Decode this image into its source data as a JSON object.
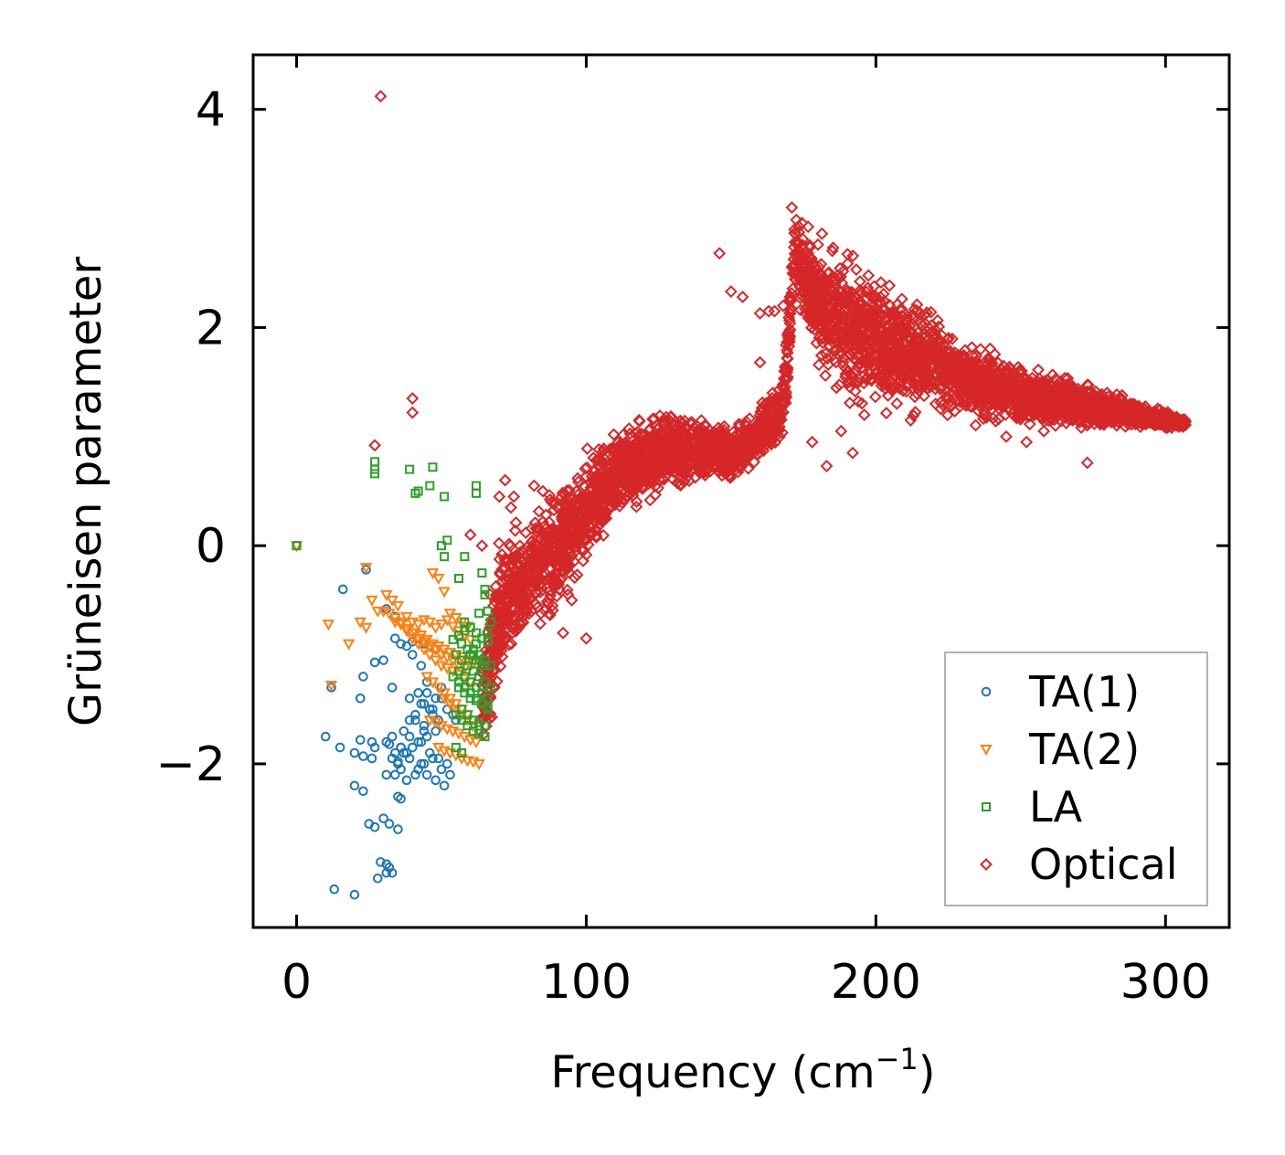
{
  "chart_data": {
    "type": "scatter",
    "title": "",
    "xlabel": "Frequency (cm",
    "xlabel_sup": "−1",
    "xlabel_close": ")",
    "ylabel": "Grüneisen parameter",
    "xlim": [
      -15,
      322
    ],
    "ylim": [
      -3.5,
      4.5
    ],
    "xticks": [
      0,
      100,
      200,
      300
    ],
    "xtick_labels": [
      "0",
      "100",
      "200",
      "300"
    ],
    "yticks": [
      -2,
      0,
      2,
      4
    ],
    "ytick_labels": [
      "−2",
      "0",
      "2",
      "4"
    ],
    "legend_position": "lower-right",
    "series": [
      {
        "name": "TA(1)",
        "marker": "circle",
        "color": "#1f77b4",
        "x": [
          0,
          24,
          16,
          31,
          34,
          34,
          27,
          30,
          33,
          12,
          23,
          22,
          36,
          38,
          40,
          43,
          45,
          42,
          44,
          46,
          48,
          50,
          41,
          39,
          44,
          47,
          49,
          37,
          39,
          42,
          45,
          48,
          36,
          38,
          40,
          43,
          46,
          49,
          33,
          35,
          37,
          39,
          42,
          44,
          47,
          50,
          52,
          31,
          34,
          36,
          38,
          41,
          43,
          45,
          48,
          51,
          53,
          41,
          44,
          46,
          39,
          43,
          47,
          35,
          36,
          30,
          32,
          35,
          29,
          31,
          33,
          36,
          38,
          20,
          23,
          25,
          27,
          10,
          15,
          22,
          26,
          20,
          23,
          26,
          27,
          35,
          33,
          31,
          32,
          34,
          28,
          31,
          32,
          13,
          20,
          45,
          50,
          52,
          54,
          55,
          40,
          44,
          48
        ],
        "y": [
          0,
          -0.22,
          -0.4,
          -0.58,
          -0.65,
          -0.85,
          -1.07,
          -1.05,
          -1.3,
          -1.3,
          -1.2,
          -1.4,
          -0.9,
          -0.92,
          -1.0,
          -1.1,
          -1.25,
          -1.35,
          -1.45,
          -1.5,
          -1.4,
          -1.3,
          -1.55,
          -1.6,
          -1.65,
          -1.55,
          -1.6,
          -1.7,
          -1.75,
          -1.8,
          -1.75,
          -1.7,
          -1.85,
          -1.9,
          -1.85,
          -1.8,
          -1.9,
          -1.95,
          -1.95,
          -2.0,
          -1.9,
          -1.95,
          -2.05,
          -2.0,
          -1.95,
          -2.05,
          -2.0,
          -2.1,
          -2.1,
          -2.05,
          -2.15,
          -2.1,
          -2.0,
          -2.1,
          -2.15,
          -2.2,
          -2.1,
          -1.6,
          -1.7,
          -1.5,
          -1.4,
          -1.45,
          -1.5,
          -2.3,
          -2.32,
          -2.5,
          -2.55,
          -2.6,
          -2.9,
          -2.92,
          -3.0,
          -1.85,
          -1.9,
          -2.2,
          -2.25,
          -2.55,
          -2.58,
          -1.75,
          -1.85,
          -1.78,
          -1.8,
          -1.9,
          -1.93,
          -1.95,
          -1.85,
          -1.98,
          -1.75,
          -1.8,
          -1.82,
          -1.9,
          -3.05,
          -3.0,
          -2.95,
          -3.15,
          -3.2,
          -1.35,
          -1.4,
          -1.5,
          -1.55,
          -1.6,
          -0.88,
          -0.9,
          -0.95
        ],
        "mark_count": 0
      },
      {
        "name": "TA(2)",
        "marker": "triangle-down",
        "color": "#ff7f0e",
        "x": [
          0,
          24,
          11,
          12,
          18,
          22,
          24,
          26,
          28,
          31,
          33,
          35,
          38,
          40,
          42,
          44,
          46,
          48,
          50,
          52,
          54,
          56,
          58,
          60,
          47,
          49,
          51,
          53,
          55,
          57,
          59,
          41,
          43,
          45,
          47,
          49,
          51,
          53,
          55,
          57,
          59,
          61,
          34,
          36,
          38,
          40,
          42,
          44,
          46,
          48,
          50,
          52,
          54,
          56,
          58,
          30,
          32,
          34,
          36,
          38,
          40,
          42,
          44,
          46,
          48,
          50,
          52,
          54,
          56,
          58,
          60,
          45,
          47,
          49,
          51,
          53,
          55,
          57,
          59,
          46,
          48,
          50,
          52,
          54,
          56,
          58,
          60,
          62,
          49,
          51,
          53,
          55,
          57,
          59,
          61,
          63,
          51,
          53,
          55,
          57,
          59,
          61
        ],
        "y": [
          0,
          -0.2,
          -0.72,
          -1.28,
          -0.9,
          -0.7,
          -0.75,
          -0.5,
          -0.6,
          -0.45,
          -0.5,
          -0.55,
          -0.65,
          -0.7,
          -0.72,
          -0.68,
          -0.7,
          -0.75,
          -0.72,
          -0.68,
          -0.74,
          -0.78,
          -0.82,
          -0.86,
          -0.25,
          -0.3,
          -0.42,
          -0.62,
          -0.66,
          -0.7,
          -0.74,
          -0.8,
          -0.82,
          -0.86,
          -0.9,
          -0.92,
          -0.95,
          -0.98,
          -1.0,
          -1.02,
          -1.05,
          -1.08,
          -0.7,
          -0.72,
          -0.76,
          -0.8,
          -0.85,
          -0.88,
          -0.92,
          -0.95,
          -1.0,
          -1.02,
          -1.05,
          -1.1,
          -1.12,
          -0.6,
          -0.62,
          -0.66,
          -0.7,
          -0.78,
          -0.85,
          -0.9,
          -0.95,
          -1.0,
          -1.05,
          -1.1,
          -1.12,
          -1.15,
          -1.18,
          -1.22,
          -1.25,
          -1.2,
          -1.25,
          -1.3,
          -1.35,
          -1.4,
          -1.45,
          -1.5,
          -1.55,
          -1.6,
          -1.62,
          -1.65,
          -1.68,
          -1.7,
          -1.72,
          -1.75,
          -1.78,
          -1.8,
          -1.85,
          -1.88,
          -1.9,
          -1.92,
          -1.95,
          -1.97,
          -1.98,
          -2.0,
          -1.4,
          -1.45,
          -1.5,
          -1.55,
          -1.6,
          -1.65
        ],
        "mark_count": 0
      },
      {
        "name": "LA",
        "marker": "square",
        "color": "#2ca02c",
        "x": [
          0,
          27,
          27,
          27,
          39,
          41,
          42,
          46,
          47,
          51,
          52,
          50,
          51,
          56,
          58,
          62,
          62,
          64,
          65,
          66,
          63,
          65,
          67,
          66,
          64,
          62,
          60,
          58,
          56,
          54,
          61,
          63,
          65,
          67,
          57,
          59,
          61,
          63,
          65,
          55,
          57,
          59,
          61,
          63,
          65,
          67,
          56,
          58,
          60,
          62,
          64,
          66,
          54,
          56,
          58,
          60,
          62,
          64,
          66,
          57,
          59,
          61,
          63,
          65,
          56,
          58,
          60,
          62,
          64,
          66,
          58,
          60,
          62,
          64,
          66,
          55,
          57,
          59,
          61,
          63,
          65,
          55,
          57,
          60,
          62,
          64
        ],
        "y": [
          0,
          0.77,
          0.7,
          0.66,
          0.7,
          0.48,
          0.5,
          0.55,
          0.72,
          0.45,
          0.05,
          0.0,
          -0.1,
          -0.3,
          -0.1,
          0.55,
          0.48,
          -0.25,
          -0.45,
          -0.6,
          -0.62,
          -0.4,
          -0.7,
          -0.8,
          -0.85,
          -0.9,
          -0.75,
          -0.78,
          -0.82,
          -0.86,
          -0.95,
          -1.0,
          -1.05,
          -1.1,
          -0.9,
          -0.95,
          -1.0,
          -1.05,
          -1.1,
          -1.0,
          -1.05,
          -1.1,
          -1.15,
          -1.2,
          -1.25,
          -1.3,
          -1.15,
          -1.2,
          -1.25,
          -1.3,
          -1.35,
          -1.4,
          -1.2,
          -1.25,
          -1.3,
          -1.35,
          -1.4,
          -1.45,
          -1.5,
          -1.5,
          -1.55,
          -1.6,
          -1.62,
          -1.65,
          -1.3,
          -1.35,
          -1.4,
          -1.42,
          -1.45,
          -1.48,
          -0.7,
          -0.75,
          -0.8,
          -0.85,
          -0.88,
          -1.55,
          -1.6,
          -1.65,
          -1.7,
          -1.72,
          -1.75,
          -1.85,
          -1.9,
          -1.0,
          -1.05,
          -1.1
        ],
        "mark_count": 0
      },
      {
        "name": "Optical",
        "marker": "diamond",
        "color": "#d62728",
        "anchors": [
          [
            64,
            -1.45
          ],
          [
            70,
            -0.6
          ],
          [
            80,
            -0.3
          ],
          [
            90,
            -0.05
          ],
          [
            100,
            0.3
          ],
          [
            110,
            0.65
          ],
          [
            120,
            0.8
          ],
          [
            130,
            0.85
          ],
          [
            140,
            0.9
          ],
          [
            150,
            0.8
          ],
          [
            168,
            1.25
          ],
          [
            172,
            2.7
          ],
          [
            180,
            2.2
          ],
          [
            190,
            2.0
          ],
          [
            200,
            1.9
          ],
          [
            210,
            1.75
          ],
          [
            220,
            1.7
          ],
          [
            230,
            1.55
          ],
          [
            240,
            1.45
          ],
          [
            250,
            1.4
          ],
          [
            260,
            1.35
          ],
          [
            270,
            1.3
          ],
          [
            280,
            1.25
          ],
          [
            290,
            1.2
          ],
          [
            300,
            1.15
          ],
          [
            307,
            1.12
          ]
        ],
        "spread": [
          0.6,
          0.8,
          0.7,
          0.7,
          0.6,
          0.55,
          0.5,
          0.45,
          0.35,
          0.3,
          0.35,
          0.45,
          0.7,
          0.8,
          0.7,
          0.65,
          0.55,
          0.45,
          0.4,
          0.35,
          0.3,
          0.25,
          0.2,
          0.15,
          0.1,
          0.05
        ],
        "bulk_count": 4200,
        "outliers_x": [
          29,
          40,
          40,
          27,
          72,
          75,
          82,
          85,
          88,
          90,
          92,
          95,
          100,
          141,
          146,
          150,
          154,
          160,
          163,
          171,
          178,
          183,
          188,
          192,
          196,
          205,
          212,
          225,
          240,
          245,
          252,
          258,
          262,
          268,
          273,
          160,
          165,
          168,
          170,
          60,
          64,
          70,
          74,
          68
        ],
        "outliers_y": [
          4.12,
          1.35,
          1.22,
          0.92,
          0.6,
          0.45,
          0.55,
          0.5,
          0.4,
          0.35,
          -0.8,
          -0.5,
          -0.85,
          1.1,
          2.68,
          2.33,
          2.28,
          1.68,
          2.15,
          3.1,
          0.95,
          0.73,
          1.05,
          0.85,
          1.2,
          1.45,
          1.15,
          1.3,
          1.25,
          1.0,
          0.95,
          1.05,
          1.1,
          1.15,
          0.76,
          2.13,
          2.15,
          2.2,
          1.9,
          0.1,
          0.0,
          0.45,
          0.35,
          -0.55
        ],
        "mark_count": 0
      }
    ]
  }
}
